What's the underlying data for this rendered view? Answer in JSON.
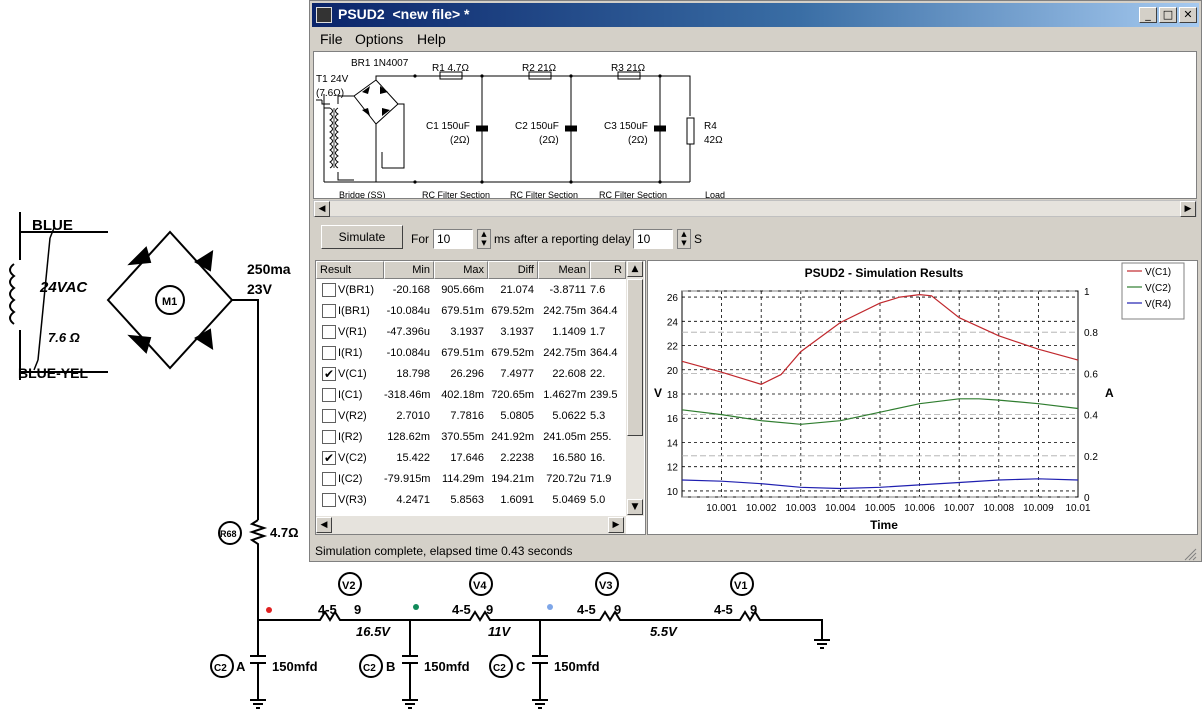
{
  "schematic": {
    "labels": {
      "blue": "BLUE",
      "blue_yel": "BLUE-YEL",
      "vac": "24VAC",
      "ohm": "7.6 Ω",
      "current": "250ma",
      "volt_23": "23V",
      "m1": "M1",
      "r68": "R68",
      "r68_value": "4.7Ω",
      "v2": "V2",
      "v4": "V4",
      "v3": "V3",
      "v1": "V1",
      "res_label": "4-5",
      "res_pin": "9",
      "volt_165": "16.5V",
      "volt_11": "11V",
      "volt_55": "5.5V",
      "c2": "C2",
      "cap_a": "A",
      "cap_b": "B",
      "cap_c": "C",
      "cap_value": "150mfd"
    }
  },
  "window": {
    "title": "PSUD2  <new file> *",
    "controls": {
      "minimize": "_",
      "maximize": "□",
      "close": "✕"
    }
  },
  "menu": [
    "File",
    "Options",
    "Help"
  ],
  "circuit": {
    "t1": "T1 24V",
    "t1_r": "(7.6Ω)",
    "br1": "BR1 1N4007",
    "r1": "R1 4.7Ω",
    "r2": "R2 21Ω",
    "r3": "R3 21Ω",
    "c1": "C1 150uF",
    "c1_r": "(2Ω)",
    "c2": "C2 150uF",
    "c2_r": "(2Ω)",
    "c3": "C3 150uF",
    "c3_r": "(2Ω)",
    "r4": "R4",
    "r4_v": "42Ω",
    "sections": [
      "Bridge (SS)",
      "RC Filter Section",
      "RC Filter Section",
      "RC Filter Section",
      "Load"
    ]
  },
  "toolbar": {
    "simulate": "Simulate",
    "for": "For",
    "ms_value": "10",
    "ms": "ms",
    "after": "after a reporting delay of",
    "delay_value": "10",
    "s": "S"
  },
  "results": {
    "columns": [
      "Result",
      "Min",
      "Max",
      "Diff",
      "Mean",
      "R"
    ],
    "rows": [
      {
        "checked": false,
        "name": "V(BR1)",
        "min": "-20.168",
        "max": "905.66m",
        "diff": "21.074",
        "mean": "-3.8711",
        "r": "7.6"
      },
      {
        "checked": false,
        "name": "I(BR1)",
        "min": "-10.084u",
        "max": "679.51m",
        "diff": "679.52m",
        "mean": "242.75m",
        "r": "364.4"
      },
      {
        "checked": false,
        "name": "V(R1)",
        "min": "-47.396u",
        "max": "3.1937",
        "diff": "3.1937",
        "mean": "1.1409",
        "r": "1.7"
      },
      {
        "checked": false,
        "name": "I(R1)",
        "min": "-10.084u",
        "max": "679.51m",
        "diff": "679.52m",
        "mean": "242.75m",
        "r": "364.4"
      },
      {
        "checked": true,
        "name": "V(C1)",
        "min": "18.798",
        "max": "26.296",
        "diff": "7.4977",
        "mean": "22.608",
        "r": "22."
      },
      {
        "checked": false,
        "name": "I(C1)",
        "min": "-318.46m",
        "max": "402.18m",
        "diff": "720.65m",
        "mean": "1.4627m",
        "r": "239.5"
      },
      {
        "checked": false,
        "name": "V(R2)",
        "min": "2.7010",
        "max": "7.7816",
        "diff": "5.0805",
        "mean": "5.0622",
        "r": "5.3"
      },
      {
        "checked": false,
        "name": "I(R2)",
        "min": "128.62m",
        "max": "370.55m",
        "diff": "241.92m",
        "mean": "241.05m",
        "r": "255."
      },
      {
        "checked": true,
        "name": "V(C2)",
        "min": "15.422",
        "max": "17.646",
        "diff": "2.2238",
        "mean": "16.580",
        "r": "16."
      },
      {
        "checked": false,
        "name": "I(C2)",
        "min": "-79.915m",
        "max": "114.29m",
        "diff": "194.21m",
        "mean": "720.72u",
        "r": "71.9"
      },
      {
        "checked": false,
        "name": "V(R3)",
        "min": "4.2471",
        "max": "5.8563",
        "diff": "1.6091",
        "mean": "5.0469",
        "r": "5.0"
      }
    ]
  },
  "chart_data": {
    "type": "line",
    "title": "PSUD2 - Simulation Results",
    "xlabel": "Time",
    "ylabel": "V",
    "y2label": "A",
    "xlim": [
      10.0,
      10.01
    ],
    "ylim": [
      9.5,
      26.5
    ],
    "y2lim": [
      0,
      1
    ],
    "x_ticks": [
      "10.001",
      "10.002",
      "10.003",
      "10.004",
      "10.005",
      "10.006",
      "10.007",
      "10.008",
      "10.009",
      "10.01"
    ],
    "y_ticks": [
      10,
      12,
      14,
      16,
      18,
      20,
      22,
      24,
      26
    ],
    "y2_ticks": [
      "0",
      "0.2",
      "0.4",
      "0.6",
      "0.8",
      "1"
    ],
    "legend_position": "right",
    "grid": true,
    "series": [
      {
        "name": "V(C1)",
        "color": "#c0282d",
        "axis": "left",
        "x": [
          10.0,
          10.001,
          10.002,
          10.0025,
          10.003,
          10.004,
          10.005,
          10.0055,
          10.006,
          10.0063,
          10.007,
          10.008,
          10.009,
          10.01
        ],
        "y": [
          20.7,
          19.8,
          18.8,
          19.6,
          21.5,
          23.9,
          25.5,
          26.0,
          26.2,
          26.1,
          24.3,
          22.8,
          21.7,
          20.8
        ]
      },
      {
        "name": "V(C2)",
        "color": "#2f7d2f",
        "axis": "left",
        "x": [
          10.0,
          10.001,
          10.002,
          10.003,
          10.004,
          10.005,
          10.006,
          10.007,
          10.0075,
          10.008,
          10.009,
          10.01
        ],
        "y": [
          16.7,
          16.3,
          15.8,
          15.5,
          15.8,
          16.5,
          17.2,
          17.6,
          17.6,
          17.5,
          17.2,
          16.8
        ]
      },
      {
        "name": "V(R4)",
        "color": "#1f1fb0",
        "axis": "left",
        "x": [
          10.0,
          10.001,
          10.002,
          10.003,
          10.004,
          10.005,
          10.006,
          10.007,
          10.008,
          10.009,
          10.01
        ],
        "y": [
          10.9,
          10.8,
          10.6,
          10.3,
          10.2,
          10.3,
          10.5,
          10.7,
          10.9,
          11.0,
          10.9
        ]
      }
    ]
  },
  "status": "Simulation complete, elapsed time 0.43 seconds"
}
